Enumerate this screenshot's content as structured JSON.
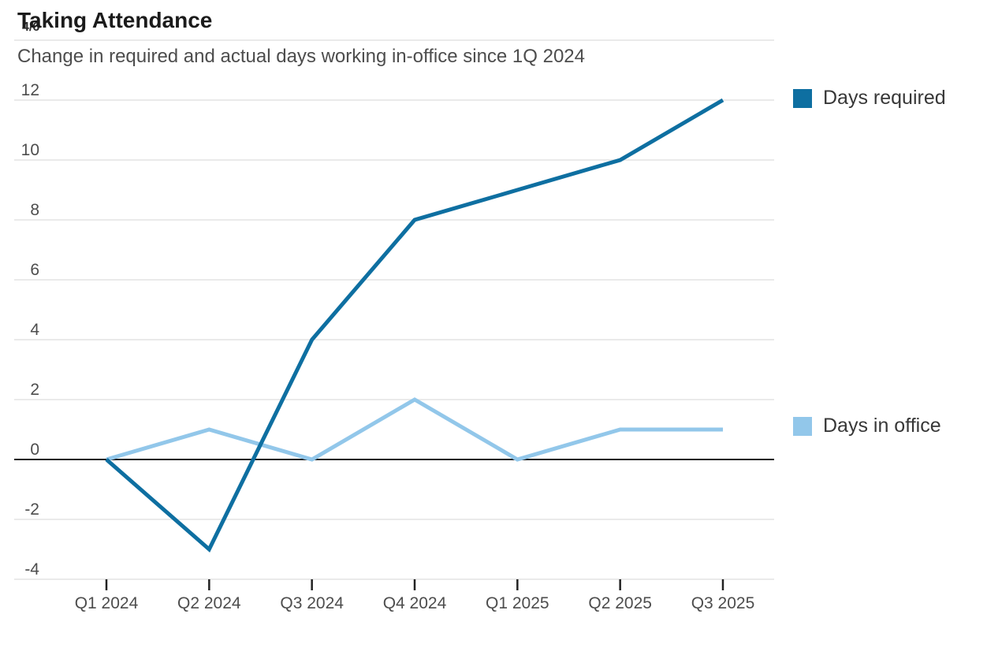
{
  "page": {
    "indicator": "4/6"
  },
  "header": {
    "title": "Taking Attendance",
    "subtitle": "Change in required and actual days working in-office since 1Q 2024"
  },
  "chart_data": {
    "type": "line",
    "title": "Taking Attendance",
    "subtitle": "Change in required and actual days working in-office since 1Q 2024",
    "categories": [
      "Q1 2024",
      "Q2 2024",
      "Q3 2024",
      "Q4 2024",
      "Q1 2025",
      "Q2 2025",
      "Q3 2025"
    ],
    "series": [
      {
        "name": "Days required",
        "color": "#0e6fa1",
        "values": [
          0,
          -3,
          4,
          8,
          9,
          10,
          12
        ]
      },
      {
        "name": "Days in office",
        "color": "#92c7ea",
        "values": [
          0,
          1,
          0,
          2,
          0,
          1,
          1
        ]
      }
    ],
    "xlabel": "",
    "ylabel": "",
    "ylim": [
      -4,
      14
    ],
    "yticks": [
      12,
      10,
      8,
      6,
      4,
      2,
      0,
      -2,
      -4
    ],
    "unlabeled_gridlines": [
      14
    ],
    "grid": true,
    "zero_line": true,
    "legend_position": "right-of-line-ends"
  },
  "colors": {
    "grid": "#e4e4e4",
    "zero_line": "#1a1a1a",
    "tick": "#222222",
    "axis_text": "#4d4d4d",
    "title_text": "#1b1b1b",
    "subtitle_text": "#4d4d4d",
    "legend_text": "#383838"
  },
  "legend": {
    "items": [
      {
        "label": "Days required"
      },
      {
        "label": "Days in office"
      }
    ]
  }
}
